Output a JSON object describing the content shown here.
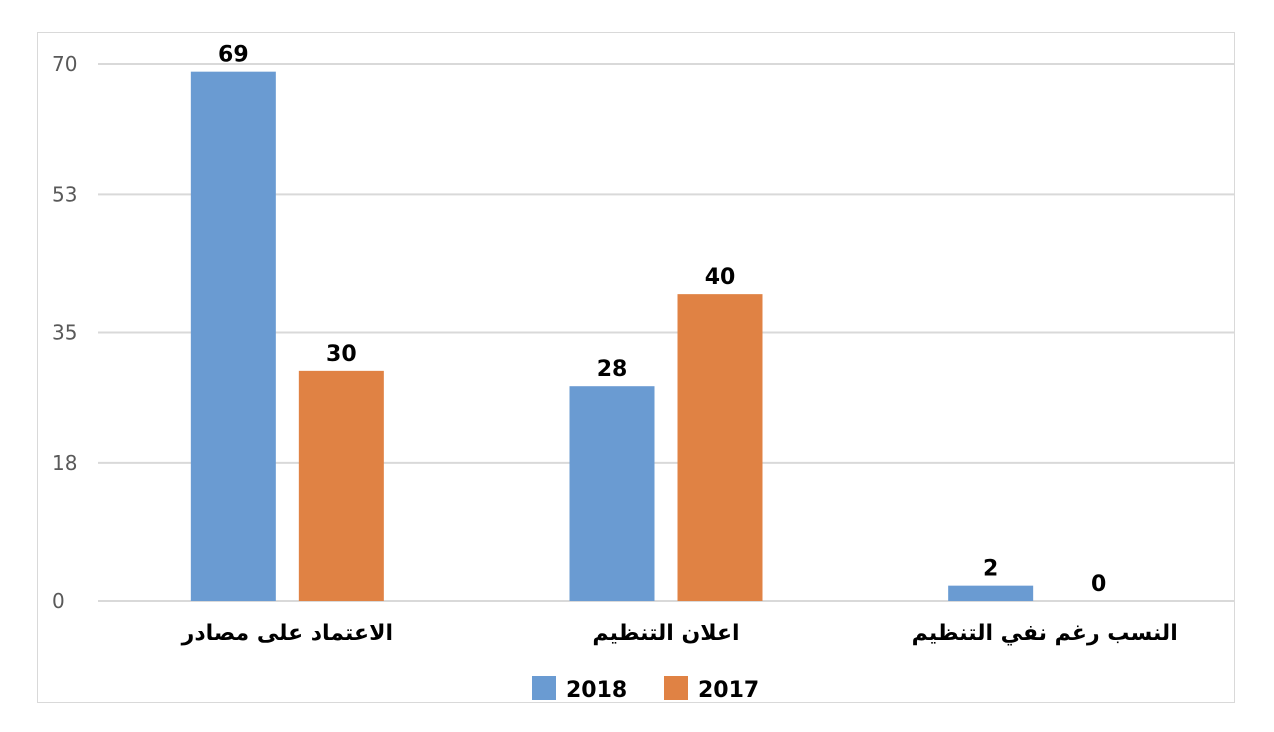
{
  "chart_data": {
    "type": "bar",
    "categories": [
      "الاعتماد على مصادر",
      "اعلان التنظيم",
      "النسب رغم نفي التنظيم"
    ],
    "series": [
      {
        "name": "2018",
        "values": [
          69,
          28,
          2
        ],
        "color": "#6a9bd2"
      },
      {
        "name": "2017",
        "values": [
          30,
          40,
          0
        ],
        "color": "#e08244"
      }
    ],
    "yticks": [
      "0",
      "18",
      "35",
      "53",
      "70"
    ],
    "ylim": [
      0,
      70
    ],
    "grid": true,
    "legend_position": "bottom",
    "title": "",
    "xlabel": "",
    "ylabel": ""
  }
}
